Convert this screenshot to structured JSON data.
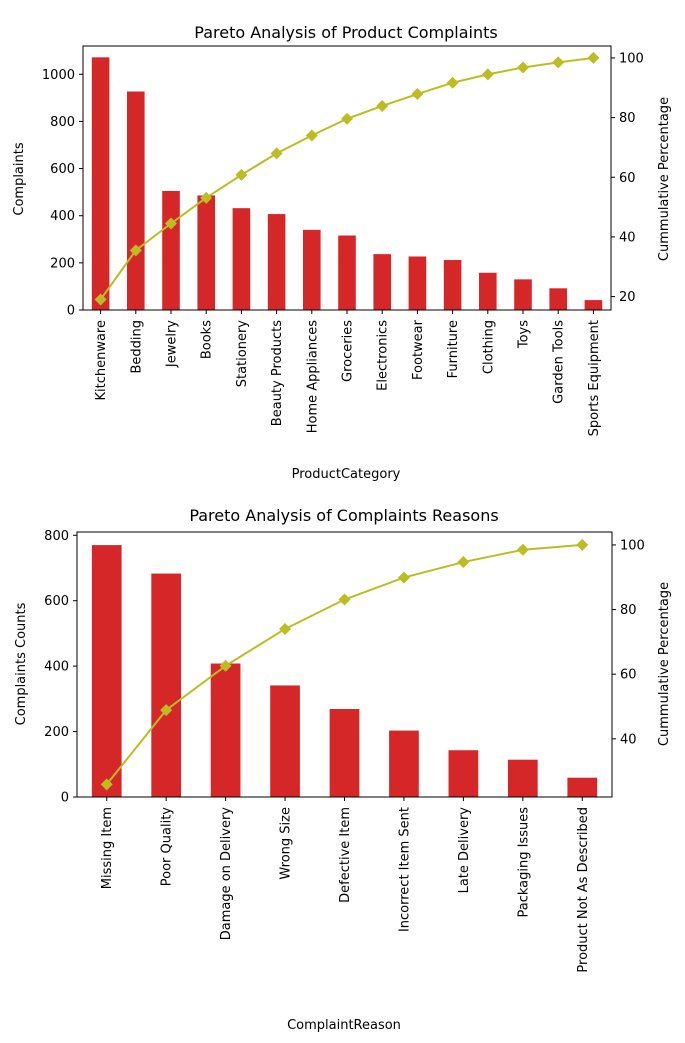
{
  "chart_data": [
    {
      "type": "bar",
      "title": "Pareto Analysis of Product Complaints",
      "xlabel": "ProductCategory",
      "ylabel": "Complaints",
      "y2label": "Cummulative Percentage",
      "ylim": [
        0,
        1120
      ],
      "yticks": [
        0,
        200,
        400,
        600,
        800,
        1000
      ],
      "y2lim": [
        15.5,
        104
      ],
      "y2ticks": [
        20,
        40,
        60,
        80,
        100
      ],
      "categories": [
        "Kitchenware",
        "Bedding",
        "Jewelry",
        "Books",
        "Stationery",
        "Beauty Products",
        "Home Appliances",
        "Groceries",
        "Electronics",
        "Footwear",
        "Furniture",
        "Clothing",
        "Toys",
        "Garden Tools",
        "Sports Equipment"
      ],
      "series": [
        {
          "type": "bar",
          "values": [
            1072,
            927,
            505,
            486,
            432,
            407,
            340,
            316,
            237,
            227,
            212,
            158,
            130,
            92,
            42
          ]
        },
        {
          "type": "line",
          "axis": "right",
          "values": [
            19.0,
            35.5,
            44.5,
            53.1,
            60.8,
            68.0,
            74.0,
            79.6,
            83.9,
            87.9,
            91.7,
            94.5,
            96.8,
            98.5,
            100
          ]
        }
      ],
      "colors": {
        "bar": "#d62728",
        "line": "#bcbd22"
      },
      "grid": false
    },
    {
      "type": "bar",
      "title": "Pareto Analysis of Complaints Reasons",
      "xlabel": "ComplaintReason",
      "ylabel": "Complaints Counts",
      "y2label": "Cummulative Percentage",
      "ylim": [
        0,
        810
      ],
      "yticks": [
        0,
        200,
        400,
        600,
        800
      ],
      "y2lim": [
        22,
        104
      ],
      "y2ticks": [
        40,
        60,
        80,
        100
      ],
      "categories": [
        "Missing Item",
        "Poor Quality",
        "Damage on Delivery",
        "Wrong Size",
        "Defective Item",
        "Incorrect Item Sent",
        "Late Delivery",
        "Packaging Issues",
        "Product Not As Described"
      ],
      "series": [
        {
          "type": "bar",
          "values": [
            770,
            683,
            408,
            341,
            269,
            203,
            143,
            114,
            59
          ]
        },
        {
          "type": "line",
          "axis": "right",
          "values": [
            25.9,
            48.9,
            62.6,
            74.0,
            83.1,
            89.9,
            94.7,
            98.5,
            100
          ]
        }
      ],
      "colors": {
        "bar": "#d62728",
        "line": "#bcbd22"
      },
      "grid": false
    }
  ]
}
